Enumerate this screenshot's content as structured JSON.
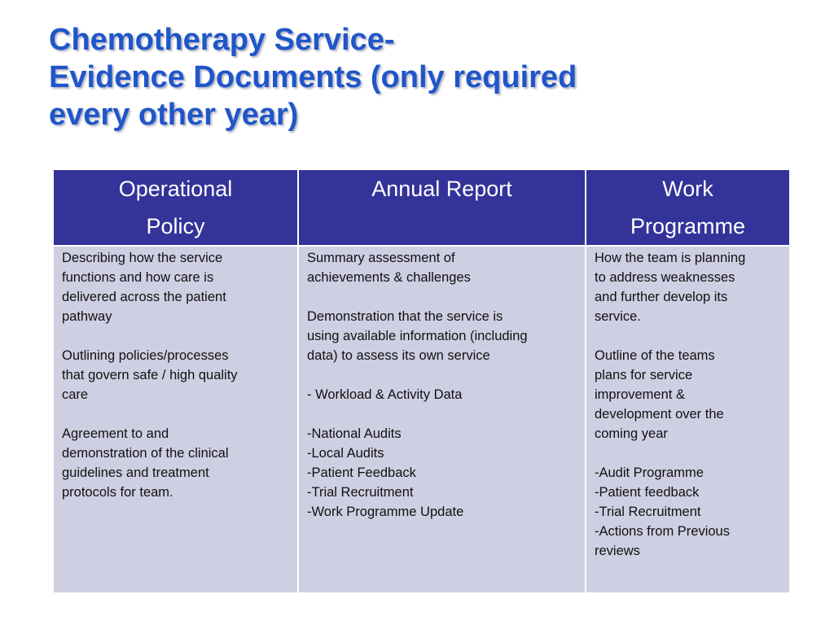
{
  "title": {
    "lines": [
      "Chemotherapy Service-",
      "Evidence Documents (only required",
      "every other year)"
    ]
  },
  "table": {
    "header_color": "#333399",
    "body_color": "#cfcfe3",
    "title_color": "#1f56c8",
    "columns": [
      {
        "header_lines": [
          "Operational",
          "Policy"
        ],
        "body_lines": [
          "Describing how the service",
          "functions and how care is",
          "delivered across the patient",
          "pathway",
          "",
          "Outlining policies/processes",
          "that govern safe / high quality",
          "care",
          "",
          "Agreement to and",
          "demonstration of the clinical",
          "guidelines and treatment",
          "protocols for team."
        ]
      },
      {
        "header_lines": [
          "Annual Report"
        ],
        "body_lines": [
          "Summary assessment of",
          "achievements & challenges",
          "",
          "Demonstration that the service is",
          "using available information (including",
          "data) to assess its own service",
          "",
          "- Workload & Activity Data",
          "",
          "-National Audits",
          "-Local Audits",
          "-Patient Feedback",
          "-Trial Recruitment",
          "-Work Programme Update"
        ]
      },
      {
        "header_lines": [
          "Work",
          "Programme"
        ],
        "body_lines": [
          "How the team is planning",
          "to address weaknesses",
          "and further develop its",
          "service.",
          "",
          "Outline of the teams",
          "plans for service",
          "improvement &",
          "development over the",
          "coming year",
          "",
          "-Audit Programme",
          "-Patient feedback",
          "-Trial Recruitment",
          "-Actions from Previous",
          "reviews"
        ]
      }
    ]
  }
}
